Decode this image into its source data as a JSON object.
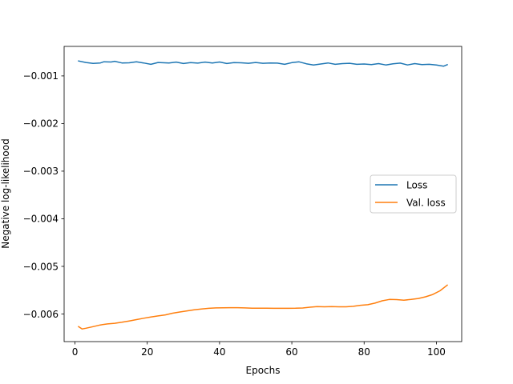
{
  "chart_data": {
    "type": "line",
    "title": "",
    "xlabel": "Epochs",
    "ylabel": "Negative log-likelihood",
    "xlim": [
      -3,
      107
    ],
    "ylim": [
      -0.00658,
      -0.00038
    ],
    "x_ticks": [
      0,
      20,
      40,
      60,
      80,
      100
    ],
    "x_tick_labels": [
      "0",
      "20",
      "40",
      "60",
      "80",
      "100"
    ],
    "y_ticks": [
      -0.001,
      -0.002,
      -0.003,
      -0.004,
      -0.005,
      -0.006
    ],
    "y_tick_labels": [
      "−0.001",
      "−0.002",
      "−0.003",
      "−0.004",
      "−0.005",
      "−0.006"
    ],
    "grid": false,
    "legend": {
      "position": "center-right",
      "entries": [
        "Loss",
        "Val. loss"
      ]
    },
    "series": [
      {
        "name": "Loss",
        "color": "#1f77b4",
        "points": [
          [
            1,
            -0.000685
          ],
          [
            3,
            -0.000718
          ],
          [
            5,
            -0.000737
          ],
          [
            7,
            -0.000728
          ],
          [
            8,
            -0.000702
          ],
          [
            10,
            -0.000707
          ],
          [
            11,
            -0.000693
          ],
          [
            13,
            -0.000728
          ],
          [
            15,
            -0.000725
          ],
          [
            17,
            -0.000705
          ],
          [
            19,
            -0.000728
          ],
          [
            21,
            -0.000756
          ],
          [
            23,
            -0.000718
          ],
          [
            26,
            -0.000728
          ],
          [
            28,
            -0.00071
          ],
          [
            30,
            -0.000739
          ],
          [
            32,
            -0.000721
          ],
          [
            34,
            -0.000731
          ],
          [
            36,
            -0.00071
          ],
          [
            38,
            -0.000728
          ],
          [
            40,
            -0.000707
          ],
          [
            42,
            -0.000739
          ],
          [
            44,
            -0.000721
          ],
          [
            46,
            -0.000724
          ],
          [
            48,
            -0.000735
          ],
          [
            50,
            -0.000718
          ],
          [
            52,
            -0.000735
          ],
          [
            54,
            -0.000728
          ],
          [
            56,
            -0.000731
          ],
          [
            58,
            -0.000756
          ],
          [
            60,
            -0.000721
          ],
          [
            62,
            -0.000705
          ],
          [
            64,
            -0.000745
          ],
          [
            66,
            -0.00077
          ],
          [
            68,
            -0.000749
          ],
          [
            70,
            -0.000728
          ],
          [
            72,
            -0.000756
          ],
          [
            74,
            -0.000742
          ],
          [
            76,
            -0.000735
          ],
          [
            78,
            -0.000756
          ],
          [
            80,
            -0.000749
          ],
          [
            82,
            -0.000763
          ],
          [
            84,
            -0.000742
          ],
          [
            86,
            -0.00077
          ],
          [
            88,
            -0.000745
          ],
          [
            90,
            -0.000731
          ],
          [
            92,
            -0.00077
          ],
          [
            94,
            -0.000742
          ],
          [
            96,
            -0.000763
          ],
          [
            98,
            -0.000756
          ],
          [
            100,
            -0.00077
          ],
          [
            102,
            -0.000795
          ],
          [
            103,
            -0.000763
          ]
        ]
      },
      {
        "name": "Val. loss",
        "color": "#ff7f0e",
        "points": [
          [
            1,
            -0.006265
          ],
          [
            2,
            -0.006314
          ],
          [
            3,
            -0.0063
          ],
          [
            5,
            -0.006265
          ],
          [
            7,
            -0.00623
          ],
          [
            9,
            -0.006209
          ],
          [
            11,
            -0.006195
          ],
          [
            13,
            -0.006174
          ],
          [
            15,
            -0.006146
          ],
          [
            17,
            -0.006118
          ],
          [
            19,
            -0.00609
          ],
          [
            21,
            -0.006062
          ],
          [
            23,
            -0.006041
          ],
          [
            25,
            -0.006018
          ],
          [
            27,
            -0.005984
          ],
          [
            29,
            -0.005958
          ],
          [
            31,
            -0.005935
          ],
          [
            33,
            -0.005912
          ],
          [
            35,
            -0.005895
          ],
          [
            37,
            -0.005881
          ],
          [
            39,
            -0.005872
          ],
          [
            41,
            -0.00587
          ],
          [
            43,
            -0.005868
          ],
          [
            45,
            -0.005867
          ],
          [
            47,
            -0.005872
          ],
          [
            49,
            -0.005877
          ],
          [
            51,
            -0.005877
          ],
          [
            53,
            -0.005879
          ],
          [
            55,
            -0.005881
          ],
          [
            57,
            -0.005881
          ],
          [
            59,
            -0.005881
          ],
          [
            61,
            -0.005879
          ],
          [
            63,
            -0.005874
          ],
          [
            65,
            -0.005858
          ],
          [
            67,
            -0.005846
          ],
          [
            69,
            -0.005849
          ],
          [
            71,
            -0.005846
          ],
          [
            73,
            -0.005849
          ],
          [
            75,
            -0.005849
          ],
          [
            77,
            -0.005839
          ],
          [
            79,
            -0.005818
          ],
          [
            81,
            -0.005805
          ],
          [
            83,
            -0.005772
          ],
          [
            85,
            -0.005723
          ],
          [
            87,
            -0.005695
          ],
          [
            89,
            -0.005698
          ],
          [
            91,
            -0.005709
          ],
          [
            93,
            -0.005695
          ],
          [
            95,
            -0.005674
          ],
          [
            97,
            -0.005639
          ],
          [
            99,
            -0.00559
          ],
          [
            101,
            -0.005513
          ],
          [
            103,
            -0.005393
          ]
        ]
      }
    ]
  }
}
